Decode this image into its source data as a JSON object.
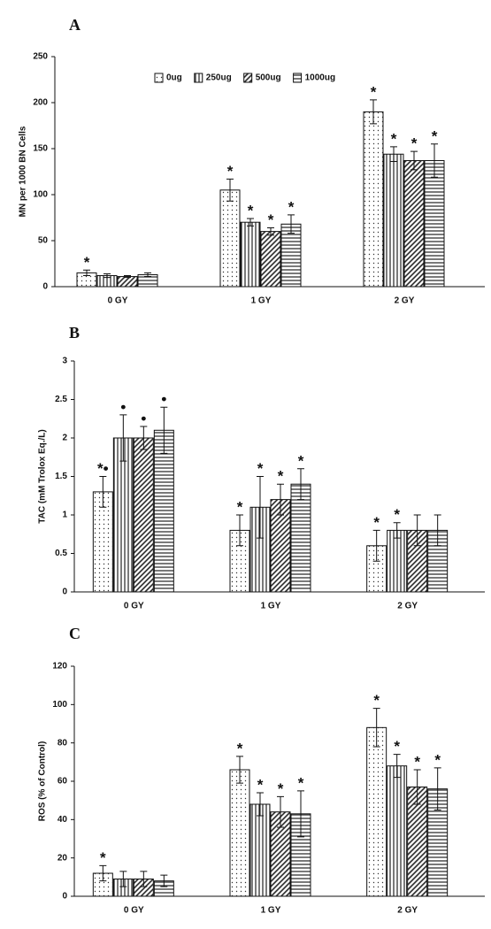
{
  "chart_data": [
    {
      "type": "bar",
      "panel_label": "A",
      "y_label": "MN per 1000 BN Cells",
      "categories": [
        "0 GY",
        "1 GY",
        "2 GY"
      ],
      "ylim": [
        0,
        250
      ],
      "yticks": [
        0,
        50,
        100,
        150,
        200,
        250
      ],
      "legend": "top-center",
      "series": [
        {
          "name": "0ug",
          "pattern": "dots",
          "values": [
            15,
            105,
            190
          ],
          "errors": [
            3,
            12,
            13
          ],
          "markers": [
            "*",
            "*",
            "*"
          ]
        },
        {
          "name": "250ug",
          "pattern": "vertical",
          "values": [
            12,
            70,
            144
          ],
          "errors": [
            2,
            4,
            8
          ],
          "markers": [
            null,
            "*",
            "*"
          ]
        },
        {
          "name": "500ug",
          "pattern": "diagonal",
          "values": [
            11,
            60,
            137
          ],
          "errors": [
            1,
            4,
            10
          ],
          "markers": [
            null,
            "*",
            "*"
          ]
        },
        {
          "name": "1000ug",
          "pattern": "horizontal",
          "values": [
            13,
            68,
            137
          ],
          "errors": [
            2,
            10,
            18
          ],
          "markers": [
            null,
            "*",
            "*"
          ]
        }
      ]
    },
    {
      "type": "bar",
      "panel_label": "B",
      "y_label": "TAC (mM Trolox Eq./L)",
      "categories": [
        "0 GY",
        "1 GY",
        "2 GY"
      ],
      "ylim": [
        0,
        3
      ],
      "yticks": [
        0,
        0.5,
        1,
        1.5,
        2,
        2.5,
        3
      ],
      "series": [
        {
          "pattern": "dots",
          "values": [
            1.3,
            0.8,
            0.6
          ],
          "errors": [
            0.2,
            0.2,
            0.2
          ],
          "markers": [
            "*•",
            "*",
            "*"
          ]
        },
        {
          "pattern": "vertical",
          "values": [
            2.0,
            1.1,
            0.8
          ],
          "errors": [
            0.3,
            0.4,
            0.1
          ],
          "markers": [
            "•",
            "*",
            "*"
          ]
        },
        {
          "pattern": "diagonal",
          "values": [
            2.0,
            1.2,
            0.8
          ],
          "errors": [
            0.15,
            0.2,
            0.2
          ],
          "markers": [
            "•",
            "*",
            null
          ]
        },
        {
          "pattern": "horizontal",
          "values": [
            2.1,
            1.4,
            0.8
          ],
          "errors": [
            0.3,
            0.2,
            0.2
          ],
          "markers": [
            "•",
            "*",
            null
          ]
        }
      ]
    },
    {
      "type": "bar",
      "panel_label": "C",
      "y_label": "ROS (% of Control)",
      "categories": [
        "0 GY",
        "1 GY",
        "2 GY"
      ],
      "ylim": [
        0,
        120
      ],
      "yticks": [
        0,
        20,
        40,
        60,
        80,
        100,
        120
      ],
      "series": [
        {
          "pattern": "dots",
          "values": [
            12,
            66,
            88
          ],
          "errors": [
            4,
            7,
            10
          ],
          "markers": [
            "*",
            "*",
            "*"
          ]
        },
        {
          "pattern": "vertical",
          "values": [
            9,
            48,
            68
          ],
          "errors": [
            4,
            6,
            6
          ],
          "markers": [
            null,
            "*",
            "*"
          ]
        },
        {
          "pattern": "diagonal",
          "values": [
            9,
            44,
            57
          ],
          "errors": [
            4,
            8,
            9
          ],
          "markers": [
            null,
            "*",
            "*"
          ]
        },
        {
          "pattern": "horizontal",
          "values": [
            8,
            43,
            56
          ],
          "errors": [
            3,
            12,
            11
          ],
          "markers": [
            null,
            "*",
            "*"
          ]
        }
      ]
    }
  ]
}
